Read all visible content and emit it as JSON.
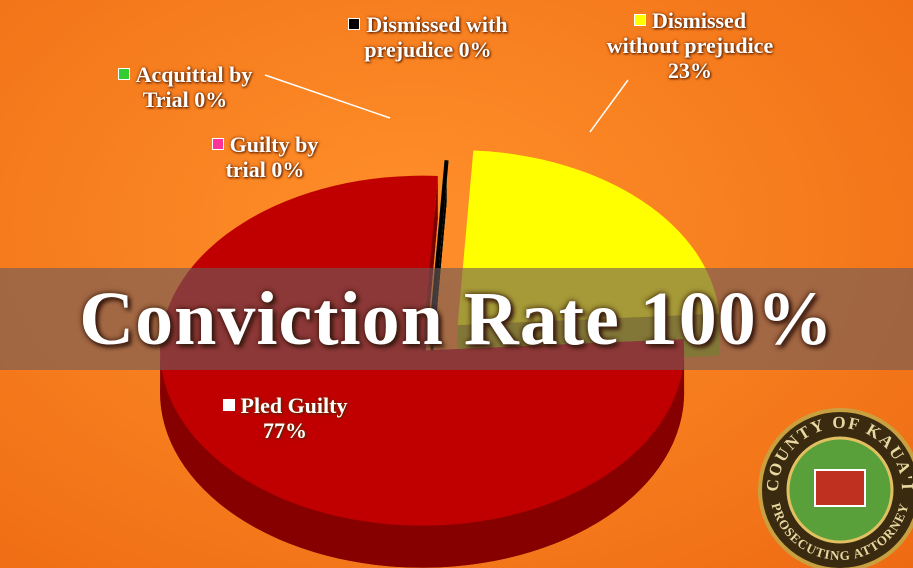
{
  "chart_data": {
    "type": "pie",
    "categories": [
      "Dismissed without prejudice",
      "Pled Guilty",
      "Guilty by trial",
      "Acquittal by Trial",
      "Dismissed with prejudice"
    ],
    "values": [
      23,
      77,
      0,
      0,
      0
    ],
    "value_labels": [
      "23%",
      "77%",
      "0%",
      "0%",
      "0%"
    ],
    "colors": [
      "#ffff00",
      "#c00000",
      "#ff3399",
      "#33cc33",
      "#000000"
    ],
    "annotation": "Conviction Rate 100%",
    "logo_text": [
      "COUNTY OF KAUA'I",
      "PROSECUTING ATTORNEY"
    ]
  }
}
